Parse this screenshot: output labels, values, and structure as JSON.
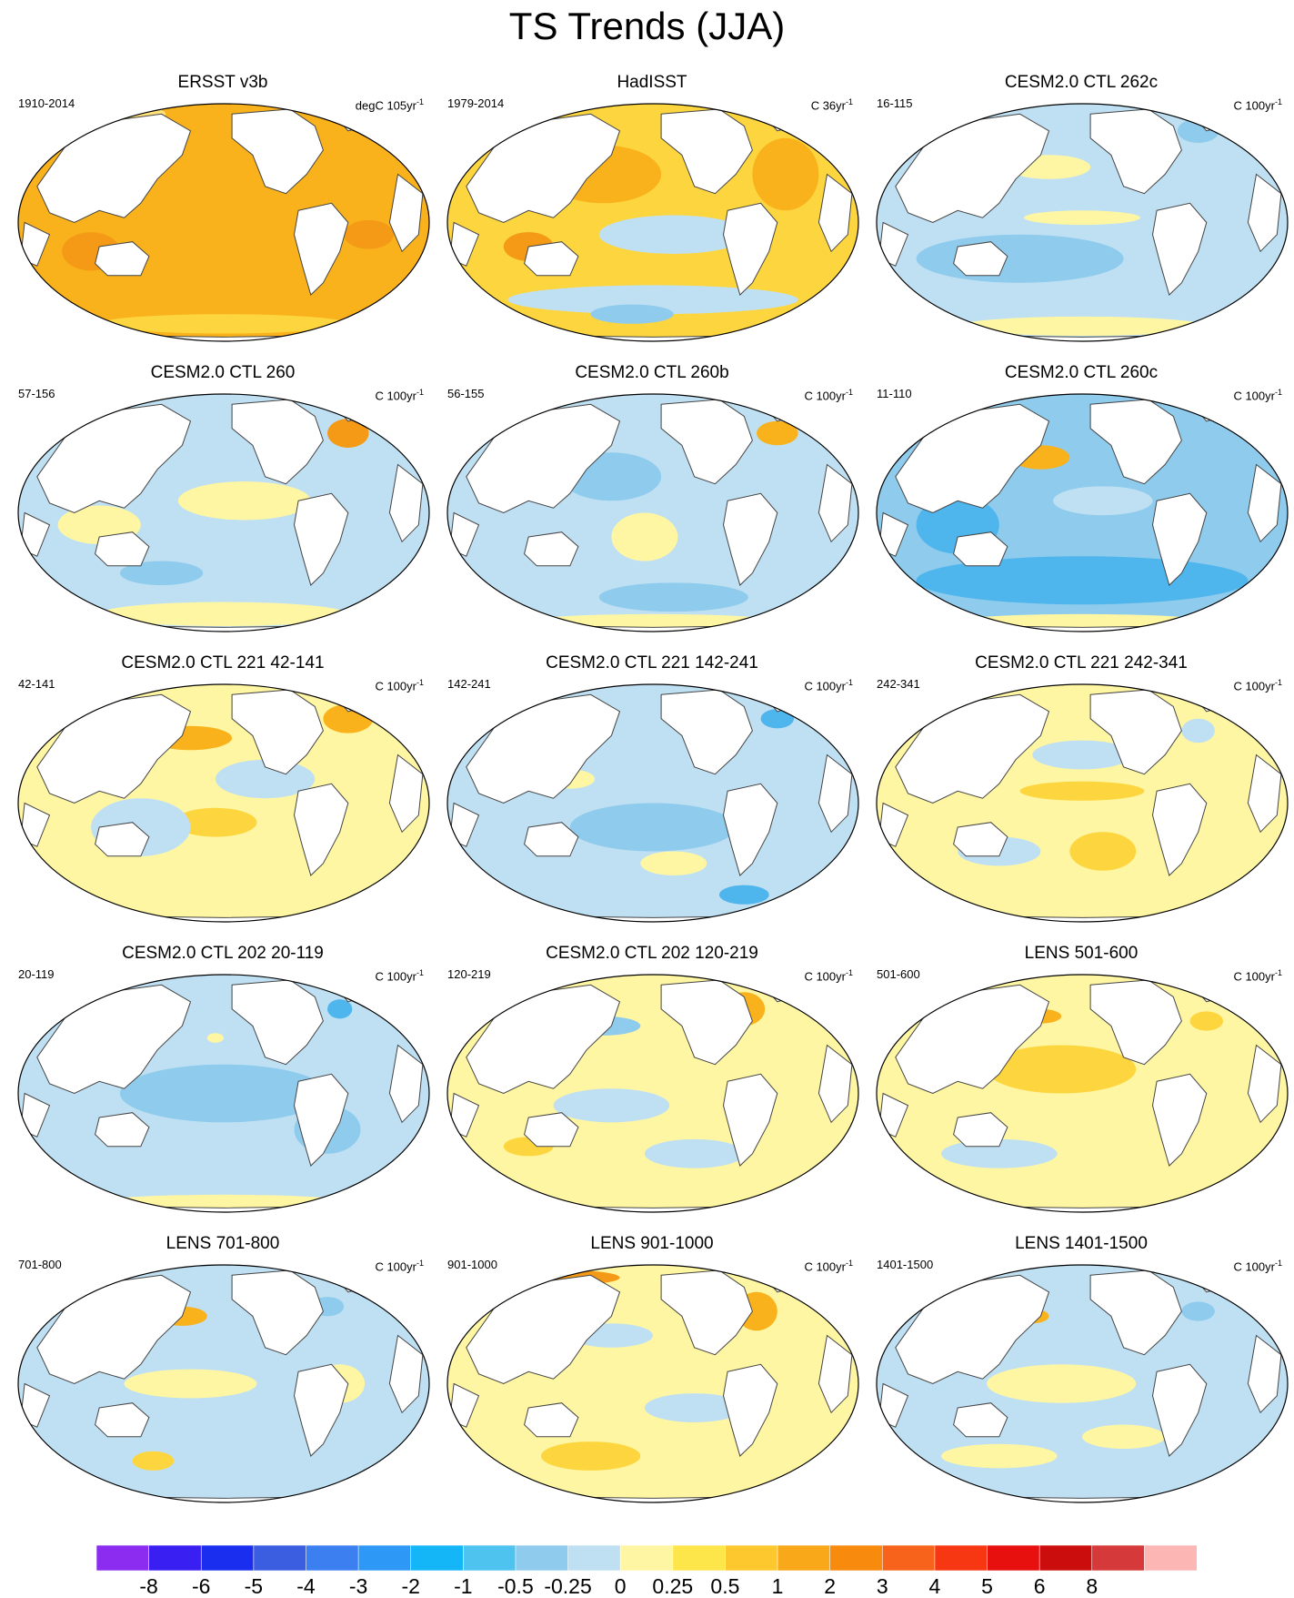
{
  "title": "TS Trends (JJA)",
  "panels": [
    {
      "title": "ERSST v3b",
      "period": "1910-2014",
      "units_base": "degC 105yr",
      "units_exp": "-1",
      "base": "#f9b21c",
      "blobs": [
        [
          "#f59a16",
          0.18,
          0.62,
          0.07,
          0.08
        ],
        [
          "#f59a16",
          0.85,
          0.55,
          0.06,
          0.06
        ],
        [
          "#fdd63f",
          0.5,
          0.92,
          0.3,
          0.04
        ],
        [
          "#ffe37a",
          0.3,
          0.05,
          0.06,
          0.03
        ]
      ]
    },
    {
      "title": "HadISST",
      "period": "1979-2014",
      "units_base": "C 36yr",
      "units_exp": "-1",
      "base": "#fdd63f",
      "blobs": [
        [
          "#f9b21c",
          0.38,
          0.3,
          0.14,
          0.12
        ],
        [
          "#f9b21c",
          0.82,
          0.3,
          0.08,
          0.15
        ],
        [
          "#bfe0f3",
          0.55,
          0.55,
          0.18,
          0.08
        ],
        [
          "#bfe0f3",
          0.5,
          0.82,
          0.35,
          0.06
        ],
        [
          "#8ecbec",
          0.45,
          0.88,
          0.1,
          0.04
        ],
        [
          "#f59a16",
          0.2,
          0.6,
          0.06,
          0.06
        ]
      ]
    },
    {
      "title": "CESM2.0 CTL 262c",
      "period": "16-115",
      "units_base": "C 100yr",
      "units_exp": "-1",
      "base": "#bfe0f3",
      "blobs": [
        [
          "#8ecbec",
          0.35,
          0.65,
          0.25,
          0.1
        ],
        [
          "#fff6a3",
          0.42,
          0.27,
          0.1,
          0.05
        ],
        [
          "#fff6a3",
          0.5,
          0.48,
          0.14,
          0.03
        ],
        [
          "#8ecbec",
          0.78,
          0.12,
          0.05,
          0.05
        ],
        [
          "#fff6a3",
          0.5,
          0.93,
          0.3,
          0.04
        ]
      ]
    },
    {
      "title": "CESM2.0 CTL 260",
      "period": "57-156",
      "units_base": "C 100yr",
      "units_exp": "-1",
      "base": "#bfe0f3",
      "blobs": [
        [
          "#fff6a3",
          0.55,
          0.45,
          0.16,
          0.08
        ],
        [
          "#fff6a3",
          0.2,
          0.55,
          0.1,
          0.08
        ],
        [
          "#f59a16",
          0.8,
          0.17,
          0.05,
          0.06
        ],
        [
          "#fff6a3",
          0.5,
          0.92,
          0.3,
          0.05
        ],
        [
          "#8ecbec",
          0.35,
          0.75,
          0.1,
          0.05
        ]
      ]
    },
    {
      "title": "CESM2.0 CTL 260b",
      "period": "56-155",
      "units_base": "C 100yr",
      "units_exp": "-1",
      "base": "#bfe0f3",
      "blobs": [
        [
          "#8ecbec",
          0.4,
          0.35,
          0.12,
          0.1
        ],
        [
          "#fff6a3",
          0.48,
          0.6,
          0.08,
          0.1
        ],
        [
          "#f9b21c",
          0.8,
          0.17,
          0.05,
          0.05
        ],
        [
          "#8ecbec",
          0.55,
          0.85,
          0.18,
          0.06
        ],
        [
          "#fff6a3",
          0.5,
          0.95,
          0.3,
          0.03
        ]
      ]
    },
    {
      "title": "CESM2.0 CTL 260c",
      "period": "11-110",
      "units_base": "C 100yr",
      "units_exp": "-1",
      "base": "#8ecbec",
      "blobs": [
        [
          "#f9b21c",
          0.4,
          0.27,
          0.07,
          0.05
        ],
        [
          "#4fb5ed",
          0.5,
          0.78,
          0.4,
          0.1
        ],
        [
          "#4fb5ed",
          0.2,
          0.55,
          0.1,
          0.12
        ],
        [
          "#bfe0f3",
          0.55,
          0.45,
          0.12,
          0.06
        ],
        [
          "#fff6a3",
          0.5,
          0.95,
          0.3,
          0.03
        ]
      ]
    },
    {
      "title": "CESM2.0 CTL 221 42-141",
      "period": "42-141",
      "units_base": "C 100yr",
      "units_exp": "-1",
      "base": "#fff6a3",
      "blobs": [
        [
          "#f9b21c",
          0.42,
          0.23,
          0.1,
          0.05
        ],
        [
          "#f9b21c",
          0.8,
          0.15,
          0.06,
          0.06
        ],
        [
          "#fdd63f",
          0.48,
          0.58,
          0.1,
          0.06
        ],
        [
          "#bfe0f3",
          0.3,
          0.6,
          0.12,
          0.12
        ],
        [
          "#bfe0f3",
          0.6,
          0.4,
          0.12,
          0.08
        ]
      ]
    },
    {
      "title": "CESM2.0 CTL 221 142-241",
      "period": "142-241",
      "units_base": "C 100yr",
      "units_exp": "-1",
      "base": "#bfe0f3",
      "blobs": [
        [
          "#8ecbec",
          0.5,
          0.6,
          0.2,
          0.1
        ],
        [
          "#4fb5ed",
          0.8,
          0.15,
          0.04,
          0.04
        ],
        [
          "#fff6a3",
          0.55,
          0.75,
          0.08,
          0.05
        ],
        [
          "#fff6a3",
          0.3,
          0.4,
          0.06,
          0.04
        ],
        [
          "#4fb5ed",
          0.72,
          0.88,
          0.06,
          0.04
        ]
      ]
    },
    {
      "title": "CESM2.0 CTL 221 242-341",
      "period": "242-341",
      "units_base": "C 100yr",
      "units_exp": "-1",
      "base": "#fff6a3",
      "blobs": [
        [
          "#bfe0f3",
          0.5,
          0.3,
          0.12,
          0.06
        ],
        [
          "#fdd63f",
          0.5,
          0.45,
          0.15,
          0.04
        ],
        [
          "#bfe0f3",
          0.3,
          0.7,
          0.1,
          0.06
        ],
        [
          "#fdd63f",
          0.55,
          0.7,
          0.08,
          0.08
        ],
        [
          "#bfe0f3",
          0.78,
          0.2,
          0.04,
          0.05
        ]
      ]
    },
    {
      "title": "CESM2.0 CTL 202 20-119",
      "period": "20-119",
      "units_base": "C 100yr",
      "units_exp": "-1",
      "base": "#bfe0f3",
      "blobs": [
        [
          "#8ecbec",
          0.5,
          0.5,
          0.25,
          0.12
        ],
        [
          "#fff6a3",
          0.48,
          0.27,
          0.02,
          0.02
        ],
        [
          "#8ecbec",
          0.75,
          0.65,
          0.08,
          0.1
        ],
        [
          "#fff6a3",
          0.5,
          0.95,
          0.3,
          0.03
        ],
        [
          "#4fb5ed",
          0.78,
          0.15,
          0.03,
          0.04
        ]
      ]
    },
    {
      "title": "CESM2.0 CTL 202 120-219",
      "period": "120-219",
      "units_base": "C 100yr",
      "units_exp": "-1",
      "base": "#fff6a3",
      "blobs": [
        [
          "#8ecbec",
          0.38,
          0.22,
          0.09,
          0.04
        ],
        [
          "#f9b21c",
          0.72,
          0.15,
          0.05,
          0.07
        ],
        [
          "#bfe0f3",
          0.4,
          0.55,
          0.14,
          0.07
        ],
        [
          "#bfe0f3",
          0.6,
          0.75,
          0.12,
          0.06
        ],
        [
          "#fdd63f",
          0.2,
          0.72,
          0.06,
          0.04
        ]
      ]
    },
    {
      "title": "LENS 501-600",
      "period": "501-600",
      "units_base": "C 100yr",
      "units_exp": "-1",
      "base": "#fff6a3",
      "blobs": [
        [
          "#fdd63f",
          0.45,
          0.4,
          0.18,
          0.1
        ],
        [
          "#bfe0f3",
          0.3,
          0.75,
          0.14,
          0.06
        ],
        [
          "#bfe0f3",
          0.25,
          0.3,
          0.08,
          0.05
        ],
        [
          "#f9b21c",
          0.4,
          0.18,
          0.05,
          0.03
        ],
        [
          "#fdd63f",
          0.8,
          0.2,
          0.04,
          0.04
        ]
      ]
    },
    {
      "title": "LENS 701-800",
      "period": "701-800",
      "units_base": "C 100yr",
      "units_exp": "-1",
      "base": "#bfe0f3",
      "blobs": [
        [
          "#f9b21c",
          0.4,
          0.22,
          0.06,
          0.04
        ],
        [
          "#fff6a3",
          0.42,
          0.5,
          0.16,
          0.06
        ],
        [
          "#fdd63f",
          0.33,
          0.82,
          0.05,
          0.04
        ],
        [
          "#8ecbec",
          0.75,
          0.18,
          0.04,
          0.04
        ],
        [
          "#fff6a3",
          0.78,
          0.5,
          0.06,
          0.08
        ]
      ]
    },
    {
      "title": "LENS 901-1000",
      "period": "901-1000",
      "units_base": "C 100yr",
      "units_exp": "-1",
      "base": "#fff6a3",
      "blobs": [
        [
          "#f59a16",
          0.3,
          0.06,
          0.12,
          0.03
        ],
        [
          "#f9b21c",
          0.75,
          0.2,
          0.05,
          0.08
        ],
        [
          "#bfe0f3",
          0.4,
          0.3,
          0.1,
          0.05
        ],
        [
          "#fdd63f",
          0.35,
          0.8,
          0.12,
          0.06
        ],
        [
          "#bfe0f3",
          0.6,
          0.6,
          0.12,
          0.06
        ]
      ]
    },
    {
      "title": "LENS 1401-1500",
      "period": "1401-1500",
      "units_base": "C 100yr",
      "units_exp": "-1",
      "base": "#bfe0f3",
      "blobs": [
        [
          "#fff6a3",
          0.45,
          0.5,
          0.18,
          0.08
        ],
        [
          "#f9b21c",
          0.38,
          0.22,
          0.04,
          0.03
        ],
        [
          "#fff6a3",
          0.3,
          0.8,
          0.14,
          0.05
        ],
        [
          "#8ecbec",
          0.78,
          0.2,
          0.04,
          0.04
        ],
        [
          "#fff6a3",
          0.6,
          0.72,
          0.1,
          0.05
        ]
      ]
    }
  ],
  "colorbar": {
    "colors": [
      "#8b2cf0",
      "#3a1ff2",
      "#1a2ef0",
      "#3b5ee0",
      "#3c7ff0",
      "#2d98f6",
      "#14b6f8",
      "#4fc3f0",
      "#8ecbec",
      "#bfe0f3",
      "#fff6a3",
      "#fde64a",
      "#fdc72e",
      "#f9a81a",
      "#f88a0e",
      "#f7631a",
      "#f73612",
      "#e80f0f",
      "#cc0d0d",
      "#d6393a",
      "#fcb6b4"
    ],
    "labels": [
      "-8",
      "-6",
      "-5",
      "-4",
      "-3",
      "-2",
      "-1",
      "-0.5",
      "-0.25",
      "0",
      "0.25",
      "0.5",
      "1",
      "2",
      "3",
      "4",
      "5",
      "6",
      "8"
    ]
  }
}
